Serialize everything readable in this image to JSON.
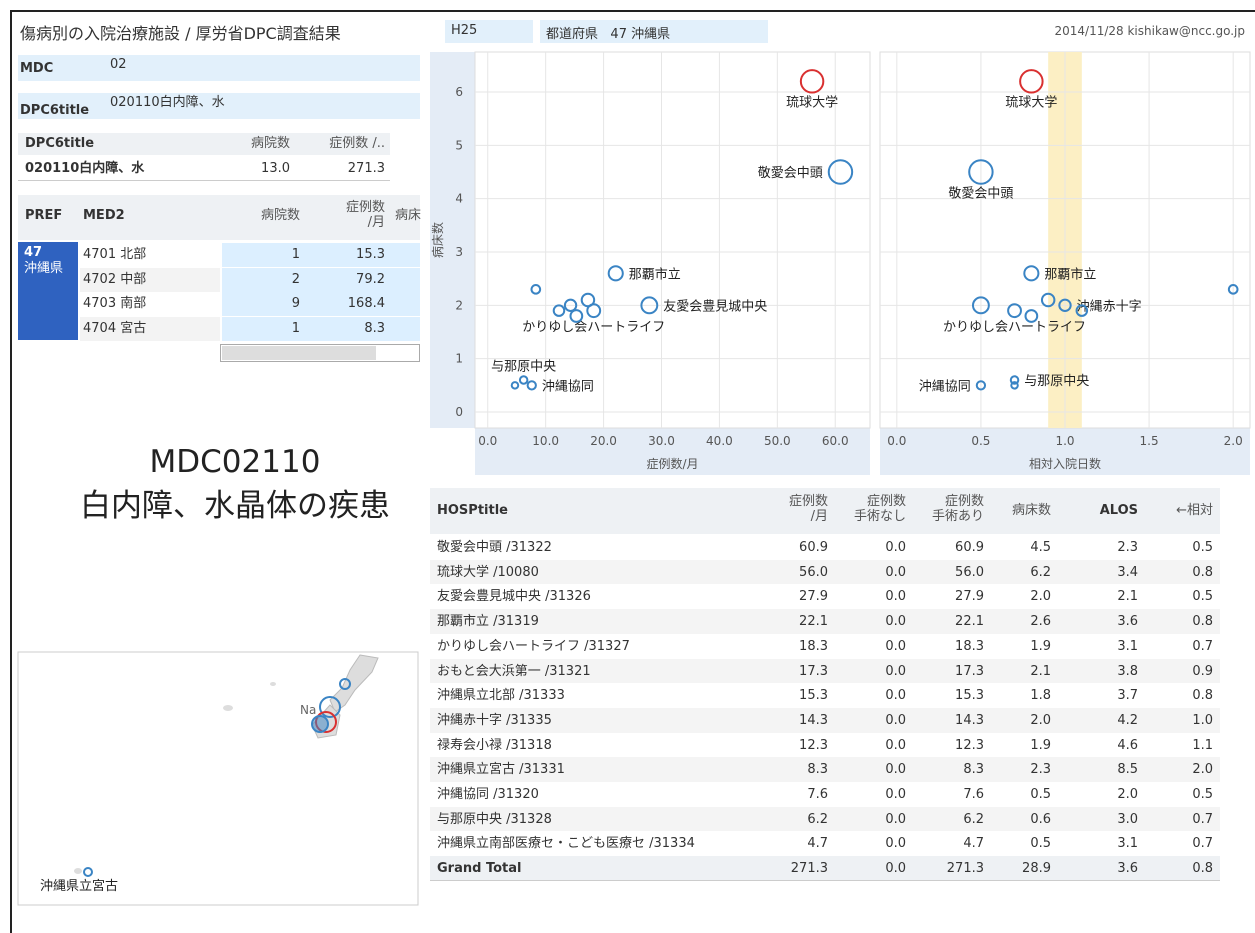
{
  "header": {
    "title": "傷病別の入院治療施設 / 厚労省DPC調査結果",
    "year": "H25",
    "pref_label": "都道府県",
    "pref_value": "47 沖縄県",
    "credit": "2014/11/28 kishikaw@ncc.go.jp"
  },
  "filters": [
    {
      "label": "MDC",
      "value": "02"
    },
    {
      "label": "DPC6title",
      "value": "020110白内障、水"
    }
  ],
  "summary_table": {
    "columns": [
      "DPC6title",
      "病院数",
      "症例数 /.."
    ],
    "rows": [
      [
        "020110白内障、水",
        "13.0",
        "271.3"
      ]
    ]
  },
  "pref_table": {
    "columns": [
      "PREF",
      "MED2",
      "病院数",
      "症例数\n/月",
      "病床"
    ],
    "pref": [
      "47",
      "沖縄県"
    ],
    "rows": [
      [
        "4701 北部",
        "1",
        "15.3"
      ],
      [
        "4702 中部",
        "2",
        "79.2"
      ],
      [
        "4703 南部",
        "9",
        "168.4"
      ],
      [
        "4704 宮古",
        "1",
        "8.3"
      ]
    ]
  },
  "heading": [
    "MDC02110",
    "白内障、水晶体の疾患"
  ],
  "map": {
    "labels": [
      "沖縄県立宮古",
      "Na"
    ]
  },
  "hosp_table": {
    "columns": [
      "HOSPtitle",
      "症例数\n/月",
      "症例数\n手術なし",
      "症例数\n手術あり",
      "病床数",
      "ALOS",
      "←相対"
    ],
    "rows": [
      [
        "敬愛会中頭 /31322",
        "60.9",
        "0.0",
        "60.9",
        "4.5",
        "2.3",
        "0.5"
      ],
      [
        "琉球大学 /10080",
        "56.0",
        "0.0",
        "56.0",
        "6.2",
        "3.4",
        "0.8"
      ],
      [
        "友愛会豊見城中央 /31326",
        "27.9",
        "0.0",
        "27.9",
        "2.0",
        "2.1",
        "0.5"
      ],
      [
        "那覇市立 /31319",
        "22.1",
        "0.0",
        "22.1",
        "2.6",
        "3.6",
        "0.8"
      ],
      [
        "かりゆし会ハートライフ /31327",
        "18.3",
        "0.0",
        "18.3",
        "1.9",
        "3.1",
        "0.7"
      ],
      [
        "おもと会大浜第一 /31321",
        "17.3",
        "0.0",
        "17.3",
        "2.1",
        "3.8",
        "0.9"
      ],
      [
        "沖縄県立北部 /31333",
        "15.3",
        "0.0",
        "15.3",
        "1.8",
        "3.7",
        "0.8"
      ],
      [
        "沖縄赤十字 /31335",
        "14.3",
        "0.0",
        "14.3",
        "2.0",
        "4.2",
        "1.0"
      ],
      [
        "禄寿会小禄 /31318",
        "12.3",
        "0.0",
        "12.3",
        "1.9",
        "4.6",
        "1.1"
      ],
      [
        "沖縄県立宮古 /31331",
        "8.3",
        "0.0",
        "8.3",
        "2.3",
        "8.5",
        "2.0"
      ],
      [
        "沖縄協同 /31320",
        "7.6",
        "0.0",
        "7.6",
        "0.5",
        "2.0",
        "0.5"
      ],
      [
        "与那原中央 /31328",
        "6.2",
        "0.0",
        "6.2",
        "0.6",
        "3.0",
        "0.7"
      ],
      [
        "沖縄県立南部医療セ・こども医療セ /31334",
        "4.7",
        "0.0",
        "4.7",
        "0.5",
        "3.1",
        "0.7"
      ]
    ],
    "total": [
      "Grand Total",
      "271.3",
      "0.0",
      "271.3",
      "28.9",
      "3.6",
      "0.8"
    ]
  },
  "chart_data": [
    {
      "type": "scatter",
      "x_label": "症例数/月",
      "y_label": "病床数",
      "x": [
        60.9,
        56.0,
        27.9,
        22.1,
        18.3,
        17.3,
        15.3,
        14.3,
        12.3,
        8.3,
        7.6,
        6.2,
        4.7
      ],
      "y": [
        4.5,
        6.2,
        2.0,
        2.6,
        1.9,
        2.1,
        1.8,
        2.0,
        1.9,
        2.3,
        0.5,
        0.6,
        0.5
      ],
      "sizes": [
        60.9,
        56.0,
        27.9,
        22.1,
        18.3,
        17.3,
        15.3,
        14.3,
        12.3,
        8.3,
        7.6,
        6.2,
        4.7
      ],
      "point_colors": [
        "#3a84c4",
        "#d93030",
        "#3a84c4",
        "#3a84c4",
        "#3a84c4",
        "#3a84c4",
        "#3a84c4",
        "#3a84c4",
        "#3a84c4",
        "#3a84c4",
        "#3a84c4",
        "#3a84c4",
        "#3a84c4"
      ],
      "labels": [
        "敬愛会中頭",
        "琉球大学",
        "友愛会豊見城中央",
        "那覇市立",
        "かりゆし会ハートライフ",
        null,
        null,
        null,
        null,
        null,
        "沖縄協同",
        "与那原中央",
        null
      ],
      "label_positions": [
        "left",
        "below",
        "right",
        "right",
        "below",
        null,
        null,
        null,
        null,
        null,
        "right",
        "above",
        null
      ],
      "xlim": [
        -2.2,
        66
      ],
      "ylim": [
        -0.3,
        6.75
      ],
      "xticks": [
        {
          "value": 0,
          "label": "0.0"
        },
        {
          "value": 10,
          "label": "10.0"
        },
        {
          "value": 20,
          "label": "20.0"
        },
        {
          "value": 30,
          "label": "30.0"
        },
        {
          "value": 40,
          "label": "40.0"
        },
        {
          "value": 50,
          "label": "50.0"
        },
        {
          "value": 60,
          "label": "60.0"
        }
      ],
      "yticks": [
        0,
        1,
        2,
        3,
        4,
        5,
        6
      ],
      "show_ytick_labels": true,
      "grid": true
    },
    {
      "type": "scatter",
      "x_label": "相対入院日数",
      "x": [
        0.5,
        0.8,
        0.5,
        0.8,
        0.7,
        0.9,
        0.8,
        1.0,
        1.1,
        2.0,
        0.5,
        0.7,
        0.7
      ],
      "y": [
        4.5,
        6.2,
        2.0,
        2.6,
        1.9,
        2.1,
        1.8,
        2.0,
        1.9,
        2.3,
        0.5,
        0.6,
        0.5
      ],
      "sizes": [
        60.9,
        56.0,
        27.9,
        22.1,
        18.3,
        17.3,
        15.3,
        14.3,
        12.3,
        8.3,
        7.6,
        6.2,
        4.7
      ],
      "point_colors": [
        "#3a84c4",
        "#d93030",
        "#3a84c4",
        "#3a84c4",
        "#3a84c4",
        "#3a84c4",
        "#3a84c4",
        "#3a84c4",
        "#3a84c4",
        "#3a84c4",
        "#3a84c4",
        "#3a84c4",
        "#3a84c4"
      ],
      "labels": [
        "敬愛会中頭",
        "琉球大学",
        null,
        "那覇市立",
        "かりゆし会ハートライフ",
        null,
        null,
        "沖縄赤十字",
        null,
        null,
        "沖縄協同",
        "与那原中央",
        null
      ],
      "label_positions": [
        "below",
        "below",
        null,
        "right",
        "below",
        null,
        null,
        "right",
        null,
        null,
        "left",
        "right",
        null
      ],
      "xlim": [
        -0.1,
        2.1
      ],
      "ylim": [
        -0.3,
        6.75
      ],
      "xticks": [
        {
          "value": 0,
          "label": "0.0"
        },
        {
          "value": 0.5,
          "label": "0.5"
        },
        {
          "value": 1,
          "label": "1.0"
        },
        {
          "value": 1.5,
          "label": "1.5"
        },
        {
          "value": 2,
          "label": "2.0"
        }
      ],
      "yticks": [
        0,
        1,
        2,
        3,
        4,
        5,
        6
      ],
      "show_ytick_labels": false,
      "grid": true,
      "reference_band": [
        0.9,
        1.1
      ],
      "band_color": "#fcefc4"
    }
  ]
}
